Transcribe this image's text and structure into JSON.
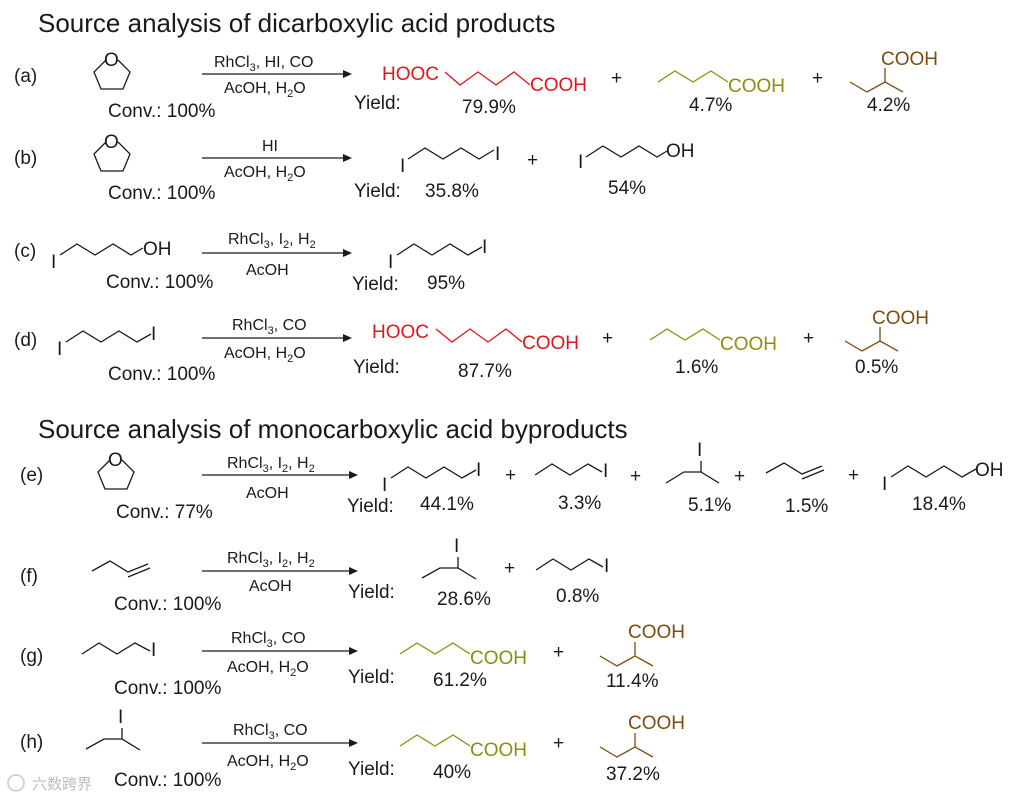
{
  "headings": {
    "dicarboxylic": "Source analysis of dicarboxylic acid products",
    "monocarboxylic": "Source analysis of monocarboxylic acid byproducts"
  },
  "common": {
    "yield": "Yield:",
    "plus": "+",
    "O": "O",
    "I": "I",
    "OH": "OH",
    "COOH": "COOH",
    "HOOC": "HOOC"
  },
  "reagents": {
    "Rh": "RhCl",
    "three": "3",
    "two": "2",
    "HI_CO": ",  HI, CO",
    "comma_I": ", I",
    "comma_H": ", H",
    "comma_CO": ", CO",
    "AcOH_H": "AcOH, H",
    "O_tail": "O",
    "HI": "HI",
    "AcOH": "AcOH"
  },
  "rows": [
    {
      "label": "(a)",
      "conv": "Conv.: 100%",
      "yields": [
        "79.9%",
        "4.7%",
        "4.2%"
      ]
    },
    {
      "label": "(b)",
      "conv": "Conv.: 100%",
      "yields": [
        "35.8%",
        "54%"
      ]
    },
    {
      "label": "(c)",
      "conv": "Conv.: 100%",
      "yields": [
        "95%"
      ]
    },
    {
      "label": "(d)",
      "conv": "Conv.: 100%",
      "yields": [
        "87.7%",
        "1.6%",
        "0.5%"
      ]
    },
    {
      "label": "(e)",
      "conv": "Conv.: 77%",
      "yields": [
        "44.1%",
        "3.3%",
        "5.1%",
        "1.5%",
        "18.4%"
      ]
    },
    {
      "label": "(f)",
      "conv": "Conv.: 100%",
      "yields": [
        "28.6%",
        "0.8%"
      ]
    },
    {
      "label": "(g)",
      "conv": "Conv.: 100%",
      "yields": [
        "61.2%",
        "11.4%"
      ]
    },
    {
      "label": "(h)",
      "conv": "Conv.: 100%",
      "yields": [
        "40%",
        "37.2%"
      ]
    }
  ],
  "colors": {
    "adipic_acid": "#e0161e",
    "valeric_acid": "#8a8f10",
    "methylbutyric_acid": "#7b4d12"
  },
  "watermark": "六数跨界"
}
